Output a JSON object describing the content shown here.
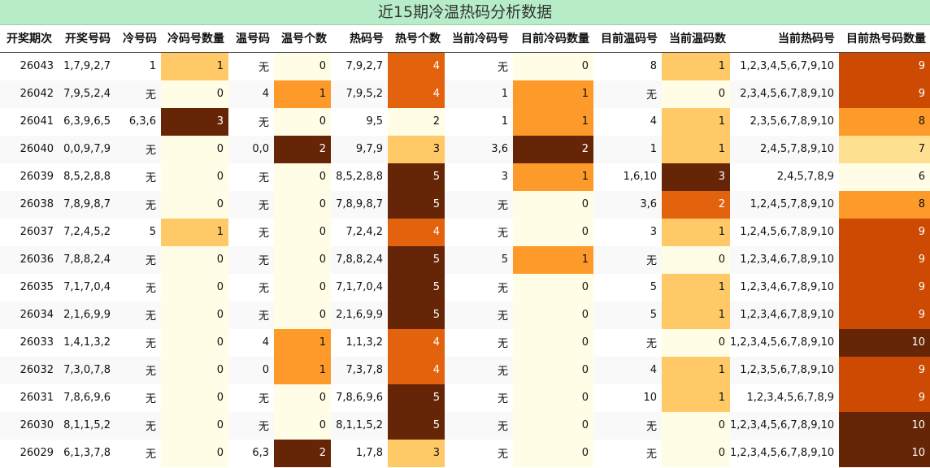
{
  "title": "近15期冷温热码分析数据",
  "headers": [
    "开奖期次",
    "开奖号码",
    "冷号码",
    "冷码号数量",
    "温号码",
    "温号个数",
    "热码号",
    "热号个数",
    "当前冷码号",
    "目前冷码数量",
    "目前温码号",
    "当前温码数",
    "当前热码号",
    "目前热号码数量"
  ],
  "rows": [
    [
      "26043",
      "1,7,9,2,7",
      "1",
      "1",
      "无",
      "0",
      "7,9,2,7",
      "4",
      "无",
      "0",
      "8",
      "1",
      "1,2,3,4,5,6,7,9,10",
      "9"
    ],
    [
      "26042",
      "7,9,5,2,4",
      "无",
      "0",
      "4",
      "1",
      "7,9,5,2",
      "4",
      "1",
      "1",
      "无",
      "0",
      "2,3,4,5,6,7,8,9,10",
      "9"
    ],
    [
      "26041",
      "6,3,9,6,5",
      "6,3,6",
      "3",
      "无",
      "0",
      "9,5",
      "2",
      "1",
      "1",
      "4",
      "1",
      "2,3,5,6,7,8,9,10",
      "8"
    ],
    [
      "26040",
      "0,0,9,7,9",
      "无",
      "0",
      "0,0",
      "2",
      "9,7,9",
      "3",
      "3,6",
      "2",
      "1",
      "1",
      "2,4,5,7,8,9,10",
      "7"
    ],
    [
      "26039",
      "8,5,2,8,8",
      "无",
      "0",
      "无",
      "0",
      "8,5,2,8,8",
      "5",
      "3",
      "1",
      "1,6,10",
      "3",
      "2,4,5,7,8,9",
      "6"
    ],
    [
      "26038",
      "7,8,9,8,7",
      "无",
      "0",
      "无",
      "0",
      "7,8,9,8,7",
      "5",
      "无",
      "0",
      "3,6",
      "2",
      "1,2,4,5,7,8,9,10",
      "8"
    ],
    [
      "26037",
      "7,2,4,5,2",
      "5",
      "1",
      "无",
      "0",
      "7,2,4,2",
      "4",
      "无",
      "0",
      "3",
      "1",
      "1,2,4,5,6,7,8,9,10",
      "9"
    ],
    [
      "26036",
      "7,8,8,2,4",
      "无",
      "0",
      "无",
      "0",
      "7,8,8,2,4",
      "5",
      "5",
      "1",
      "无",
      "0",
      "1,2,3,4,6,7,8,9,10",
      "9"
    ],
    [
      "26035",
      "7,1,7,0,4",
      "无",
      "0",
      "无",
      "0",
      "7,1,7,0,4",
      "5",
      "无",
      "0",
      "5",
      "1",
      "1,2,3,4,6,7,8,9,10",
      "9"
    ],
    [
      "26034",
      "2,1,6,9,9",
      "无",
      "0",
      "无",
      "0",
      "2,1,6,9,9",
      "5",
      "无",
      "0",
      "5",
      "1",
      "1,2,3,4,6,7,8,9,10",
      "9"
    ],
    [
      "26033",
      "1,4,1,3,2",
      "无",
      "0",
      "4",
      "1",
      "1,1,3,2",
      "4",
      "无",
      "0",
      "无",
      "0",
      "1,2,3,4,5,6,7,8,9,10",
      "10"
    ],
    [
      "26032",
      "7,3,0,7,8",
      "无",
      "0",
      "0",
      "1",
      "7,3,7,8",
      "4",
      "无",
      "0",
      "4",
      "1",
      "1,2,3,5,6,7,8,9,10",
      "9"
    ],
    [
      "26031",
      "7,8,6,9,6",
      "无",
      "0",
      "无",
      "0",
      "7,8,6,9,6",
      "5",
      "无",
      "0",
      "10",
      "1",
      "1,2,3,4,5,6,7,8,9",
      "9"
    ],
    [
      "26030",
      "8,1,1,5,2",
      "无",
      "0",
      "无",
      "0",
      "8,1,1,5,2",
      "5",
      "无",
      "0",
      "无",
      "0",
      "1,2,3,4,5,6,7,8,9,10",
      "10"
    ],
    [
      "26029",
      "6,1,3,7,8",
      "无",
      "0",
      "6,3",
      "2",
      "1,7,8",
      "3",
      "无",
      "0",
      "无",
      "0",
      "1,2,3,4,5,6,7,8,9,10",
      "10"
    ]
  ]
}
